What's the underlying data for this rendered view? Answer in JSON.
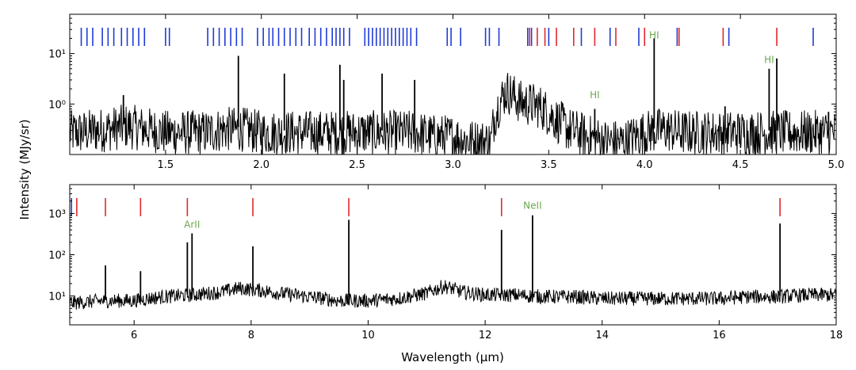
{
  "figure": {
    "ylabel": "Intensity (MJy/sr)",
    "xlabel": "Wavelength (μm)"
  },
  "chart_data": [
    {
      "type": "line",
      "panel": "top",
      "xlim": [
        1.0,
        5.0
      ],
      "ylim_log": [
        0.1,
        60
      ],
      "yscale": "log",
      "xticks": [
        1.5,
        2.0,
        2.5,
        3.0,
        3.5,
        4.0,
        4.5,
        5.0
      ],
      "xtick_labels": [
        "1.5",
        "2.0",
        "2.5",
        "3.0",
        "3.5",
        "4.0",
        "4.5",
        "5.0"
      ],
      "yticks": [
        1,
        10
      ],
      "ytick_labels": [
        "10⁰",
        "10¹"
      ],
      "series": [
        {
          "name": "spectrum",
          "x": [
            1.05,
            1.2,
            1.3,
            1.4,
            1.5,
            1.6,
            1.7,
            1.8,
            1.9,
            2.0,
            2.1,
            2.2,
            2.3,
            2.4,
            2.5,
            2.6,
            2.7,
            2.8,
            2.9,
            3.0,
            3.1,
            3.2,
            3.28,
            3.35,
            3.4,
            3.45,
            3.5,
            3.55,
            3.6,
            3.7,
            3.8,
            3.9,
            4.0,
            4.1,
            4.2,
            4.3,
            4.4,
            4.5,
            4.6,
            4.7,
            4.8,
            4.9,
            5.0
          ],
          "y": [
            0.3,
            0.35,
            0.4,
            0.35,
            0.3,
            0.3,
            0.3,
            0.35,
            0.35,
            0.3,
            0.3,
            0.3,
            0.3,
            0.3,
            0.3,
            0.3,
            0.3,
            0.3,
            0.25,
            0.25,
            0.2,
            0.2,
            2.0,
            1.2,
            1.1,
            1.0,
            0.7,
            0.5,
            0.35,
            0.25,
            0.2,
            0.2,
            0.3,
            0.35,
            0.3,
            0.3,
            0.3,
            0.3,
            0.3,
            0.3,
            0.3,
            0.3,
            0.3
          ]
        }
      ],
      "emission_peaks": {
        "x": [
          1.28,
          1.88,
          2.12,
          2.41,
          2.43,
          2.63,
          2.8,
          3.74,
          4.05,
          4.42,
          4.65,
          4.69,
          4.96
        ],
        "y": [
          1.5,
          9.0,
          4.0,
          6.0,
          3.0,
          4.0,
          3.0,
          0.8,
          20.0,
          0.9,
          5.0,
          8.0,
          0.7
        ]
      },
      "line_markers_blue": [
        1.06,
        1.09,
        1.12,
        1.17,
        1.2,
        1.23,
        1.27,
        1.3,
        1.33,
        1.36,
        1.39,
        1.5,
        1.52,
        1.72,
        1.75,
        1.78,
        1.81,
        1.84,
        1.87,
        1.9,
        1.98,
        2.01,
        2.04,
        2.06,
        2.09,
        2.12,
        2.15,
        2.18,
        2.21,
        2.25,
        2.28,
        2.31,
        2.34,
        2.37,
        2.39,
        2.41,
        2.43,
        2.46,
        2.54,
        2.56,
        2.58,
        2.6,
        2.62,
        2.64,
        2.66,
        2.68,
        2.7,
        2.72,
        2.74,
        2.76,
        2.78,
        2.81,
        2.97,
        2.99,
        3.04,
        3.17,
        3.19,
        3.24,
        3.39,
        3.41,
        3.5,
        3.67,
        3.82,
        3.97,
        4.17,
        4.44,
        4.88
      ],
      "line_markers_red": [
        3.4,
        3.44,
        3.48,
        3.54,
        3.63,
        3.74,
        3.85,
        4.0,
        4.18,
        4.41,
        4.69
      ],
      "annotations": [
        {
          "text": "HI",
          "x": 4.05,
          "y": 20
        },
        {
          "text": "HI",
          "x": 3.74,
          "y": 1.3
        },
        {
          "text": "HI",
          "x": 4.65,
          "y": 6.5
        }
      ]
    },
    {
      "type": "line",
      "panel": "bottom",
      "xlim": [
        4.9,
        18.0
      ],
      "ylim_log": [
        2,
        5000
      ],
      "yscale": "log",
      "xticks": [
        6,
        8,
        10,
        12,
        14,
        16,
        18
      ],
      "xtick_labels": [
        "6",
        "8",
        "10",
        "12",
        "14",
        "16",
        "18"
      ],
      "yticks": [
        10,
        100,
        1000
      ],
      "ytick_labels": [
        "10¹",
        "10²",
        "10³"
      ],
      "series": [
        {
          "name": "spectrum",
          "x": [
            4.9,
            5.5,
            6.0,
            6.5,
            7.0,
            7.5,
            7.8,
            8.2,
            8.5,
            9.0,
            9.5,
            10.0,
            10.5,
            11.0,
            11.3,
            11.6,
            12.0,
            12.5,
            13.0,
            13.5,
            14.0,
            14.5,
            15.0,
            15.5,
            16.0,
            16.5,
            17.0,
            17.5,
            18.0
          ],
          "y": [
            7,
            8,
            8,
            10,
            11,
            13,
            16,
            14,
            12,
            10,
            8,
            8,
            9,
            12,
            18,
            13,
            11,
            11,
            10,
            10,
            9,
            9,
            9,
            9,
            9,
            10,
            10,
            11,
            11
          ]
        }
      ],
      "emission_peaks": {
        "x": [
          5.51,
          6.11,
          6.91,
          6.99,
          8.03,
          9.67,
          12.28,
          12.81,
          17.04
        ],
        "y": [
          55,
          40,
          200,
          330,
          160,
          700,
          400,
          900,
          570
        ]
      },
      "line_markers_blue": [
        4.93
      ],
      "line_markers_red": [
        5.02,
        5.51,
        6.11,
        6.91,
        8.03,
        9.67,
        12.28,
        17.04
      ],
      "annotations": [
        {
          "text": "ArII",
          "x": 6.99,
          "y": 450
        },
        {
          "text": "NeII",
          "x": 12.81,
          "y": 1300
        }
      ]
    }
  ]
}
